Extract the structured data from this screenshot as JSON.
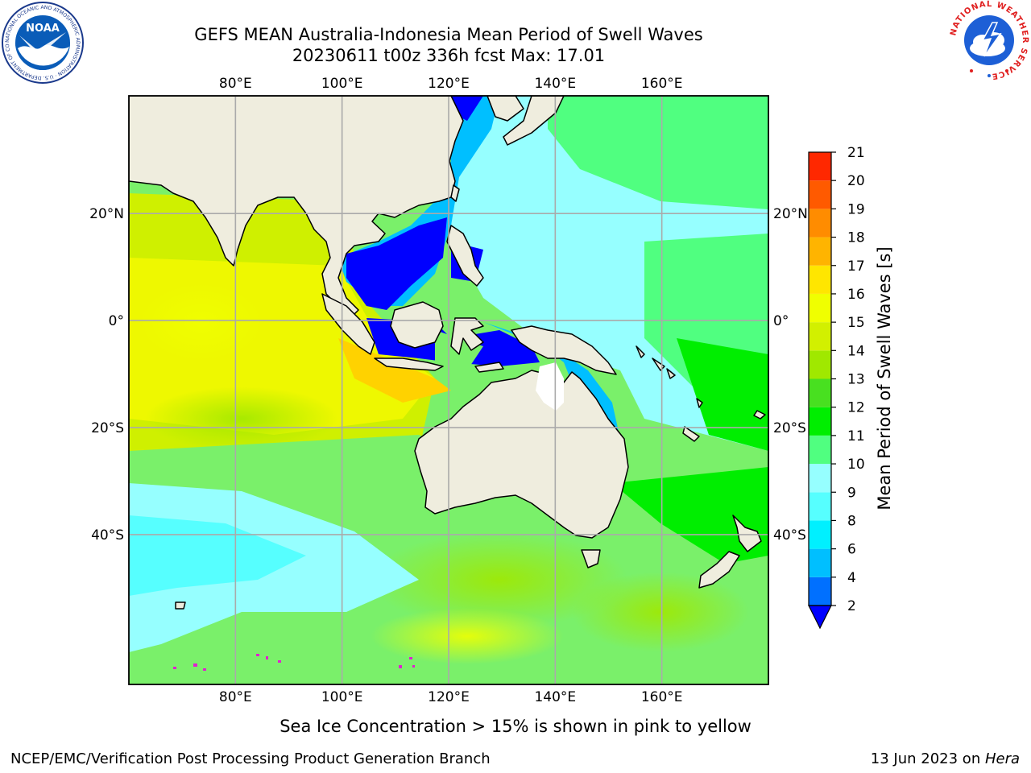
{
  "title": {
    "line1": "GEFS MEAN Australia-Indonesia Mean Period of Swell Waves",
    "line2": "20230611 t00z 336h fcst   Max: 17.01"
  },
  "logos": {
    "left": "noaa-logo",
    "left_text": "NOAA",
    "left_ring_text": "NATIONAL OCEANIC AND ATMOSPHERIC ADMINISTRATION · U.S. DEPARTMENT OF COMMERCE",
    "right": "national-weather-service-logo",
    "right_ring_text": "NATIONAL WEATHER SERVICE"
  },
  "map": {
    "lon_range": [
      60,
      180
    ],
    "lat_range": [
      -68,
      42
    ],
    "lon_ticks": [
      "80°E",
      "100°E",
      "120°E",
      "140°E",
      "160°E"
    ],
    "lat_ticks": [
      "20°N",
      "0°",
      "20°S",
      "40°S"
    ],
    "land_color": "#efedde",
    "grid": true
  },
  "colorbar": {
    "label": "Mean Period of Swell Waves [s]",
    "ticks": [
      "2",
      "4",
      "6",
      "8",
      "9",
      "10",
      "11",
      "12",
      "13",
      "14",
      "15",
      "16",
      "17",
      "18",
      "19",
      "20",
      "21"
    ],
    "colors": [
      "#0070ff",
      "#00bfff",
      "#00f0ff",
      "#56ffff",
      "#96ffff",
      "#50ff80",
      "#00ee00",
      "#48e020",
      "#a0e800",
      "#d2f000",
      "#f0ff00",
      "#ffe600",
      "#ffb400",
      "#ff8c00",
      "#ff5a00",
      "#ff2800",
      "#ff0000"
    ],
    "under_color": "#0000ff"
  },
  "ice_note": "Sea Ice Concentration > 15% is shown in pink to yellow",
  "footer": {
    "left": "NCEP/EMC/Verification Post Processing Product Generation Branch",
    "right_prefix": "13 Jun 2023 on ",
    "right_host": "Hera"
  }
}
